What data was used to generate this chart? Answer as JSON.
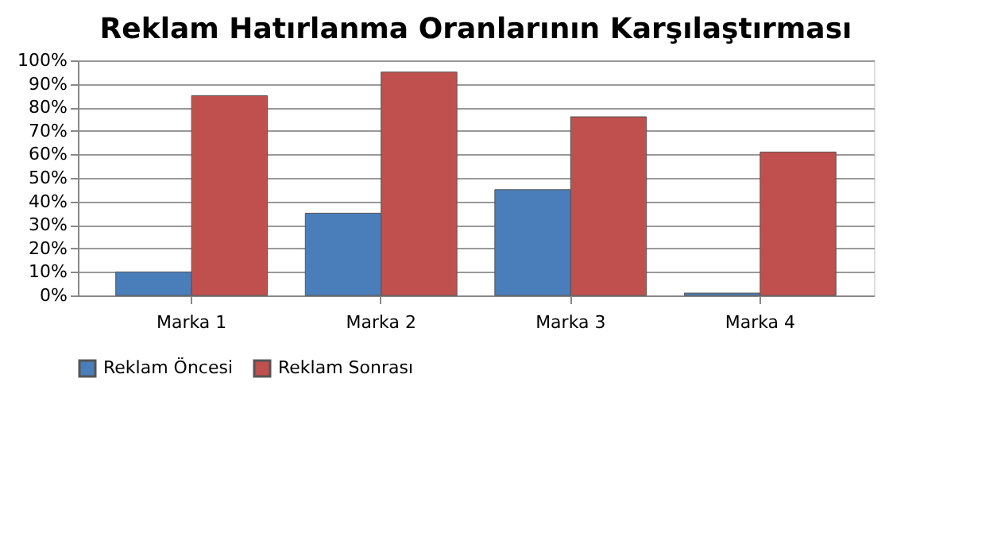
{
  "chart_data": {
    "type": "bar",
    "title": "Reklam Hatırlanma Oranlarının Karşılaştırması",
    "categories": [
      "Marka 1",
      "Marka 2",
      "Marka 3",
      "Marka 4"
    ],
    "series": [
      {
        "name": "Reklam Öncesi",
        "color": "#4a7ebb",
        "values": [
          10,
          35,
          45,
          1
        ]
      },
      {
        "name": "Reklam Sonrası",
        "color": "#c0504d",
        "values": [
          85,
          95,
          76,
          61
        ]
      }
    ],
    "ylim": [
      0,
      100
    ],
    "yticks": [
      {
        "value": 0,
        "label": "0%"
      },
      {
        "value": 10,
        "label": "10%"
      },
      {
        "value": 20,
        "label": "20%"
      },
      {
        "value": 30,
        "label": "30%"
      },
      {
        "value": 40,
        "label": "40%"
      },
      {
        "value": 50,
        "label": "50%"
      },
      {
        "value": 60,
        "label": "60%"
      },
      {
        "value": 70,
        "label": "70%"
      },
      {
        "value": 80,
        "label": "80%"
      },
      {
        "value": 90,
        "label": "90%"
      },
      {
        "value": 100,
        "label": "100%"
      }
    ],
    "grid": "y",
    "legend": "bottom"
  }
}
